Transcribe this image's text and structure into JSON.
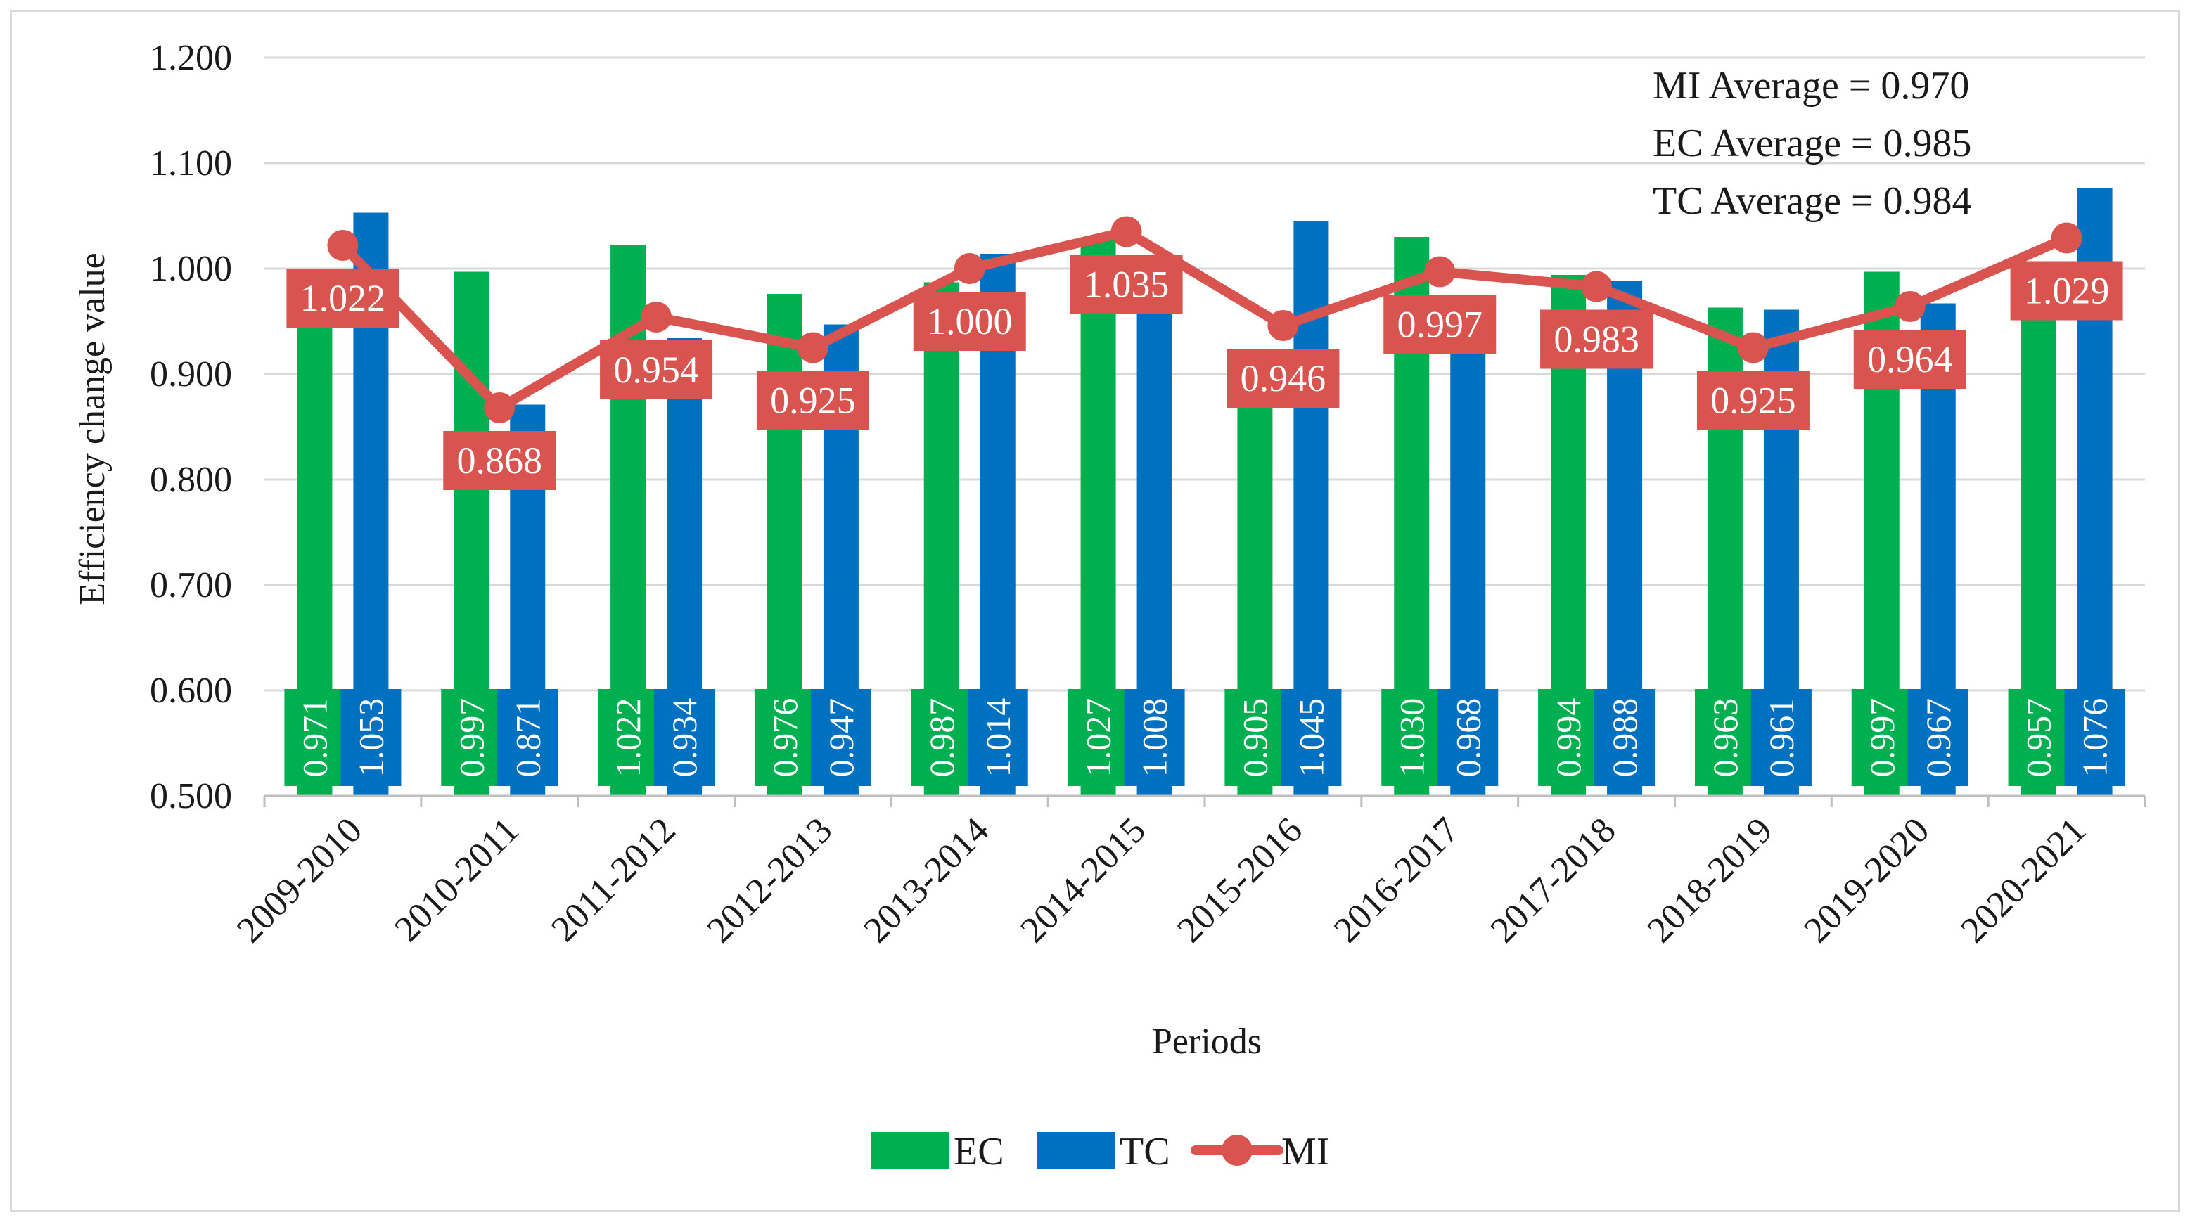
{
  "chart_data": {
    "type": "bar",
    "title": "",
    "xlabel": "Periods",
    "ylabel": "Efficiency change value",
    "ylim": [
      0.5,
      1.2
    ],
    "yticks": [
      "0.500",
      "0.600",
      "0.700",
      "0.800",
      "0.900",
      "1.000",
      "1.100",
      "1.200"
    ],
    "grid": true,
    "legend_position": "bottom",
    "categories": [
      "2009-2010",
      "2010-2011",
      "2011-2012",
      "2012-2013",
      "2013-2014",
      "2014-2015",
      "2015-2016",
      "2016-2017",
      "2017-2018",
      "2018-2019",
      "2019-2020",
      "2020-2021"
    ],
    "series": [
      {
        "name": "EC",
        "kind": "bar",
        "color": "#00b050",
        "values": [
          0.971,
          0.997,
          1.022,
          0.976,
          0.987,
          1.027,
          0.905,
          1.03,
          0.994,
          0.963,
          0.997,
          0.957
        ],
        "labels": [
          "0.971",
          "0.997",
          "1.022",
          "0.976",
          "0.987",
          "1.027",
          "0.905",
          "1.030",
          "0.994",
          "0.963",
          "0.997",
          "0.957"
        ]
      },
      {
        "name": "TC",
        "kind": "bar",
        "color": "#0070c0",
        "values": [
          1.053,
          0.871,
          0.934,
          0.947,
          1.014,
          1.008,
          1.045,
          0.968,
          0.988,
          0.961,
          0.967,
          1.076
        ],
        "labels": [
          "1.053",
          "0.871",
          "0.934",
          "0.947",
          "1.014",
          "1.008",
          "1.045",
          "0.968",
          "0.988",
          "0.961",
          "0.967",
          "1.076"
        ]
      },
      {
        "name": "MI",
        "kind": "line",
        "color": "#d9534f",
        "values": [
          1.022,
          0.868,
          0.954,
          0.925,
          1.0,
          1.035,
          0.946,
          0.997,
          0.983,
          0.925,
          0.964,
          1.029
        ],
        "labels": [
          "1.022",
          "0.868",
          "0.954",
          "0.925",
          "1.000",
          "1.035",
          "0.946",
          "0.997",
          "0.983",
          "0.925",
          "0.964",
          "1.029"
        ]
      }
    ],
    "annotations": [
      "MI Average = 0.970",
      "EC Average = 0.985",
      "TC Average = 0.984"
    ]
  }
}
